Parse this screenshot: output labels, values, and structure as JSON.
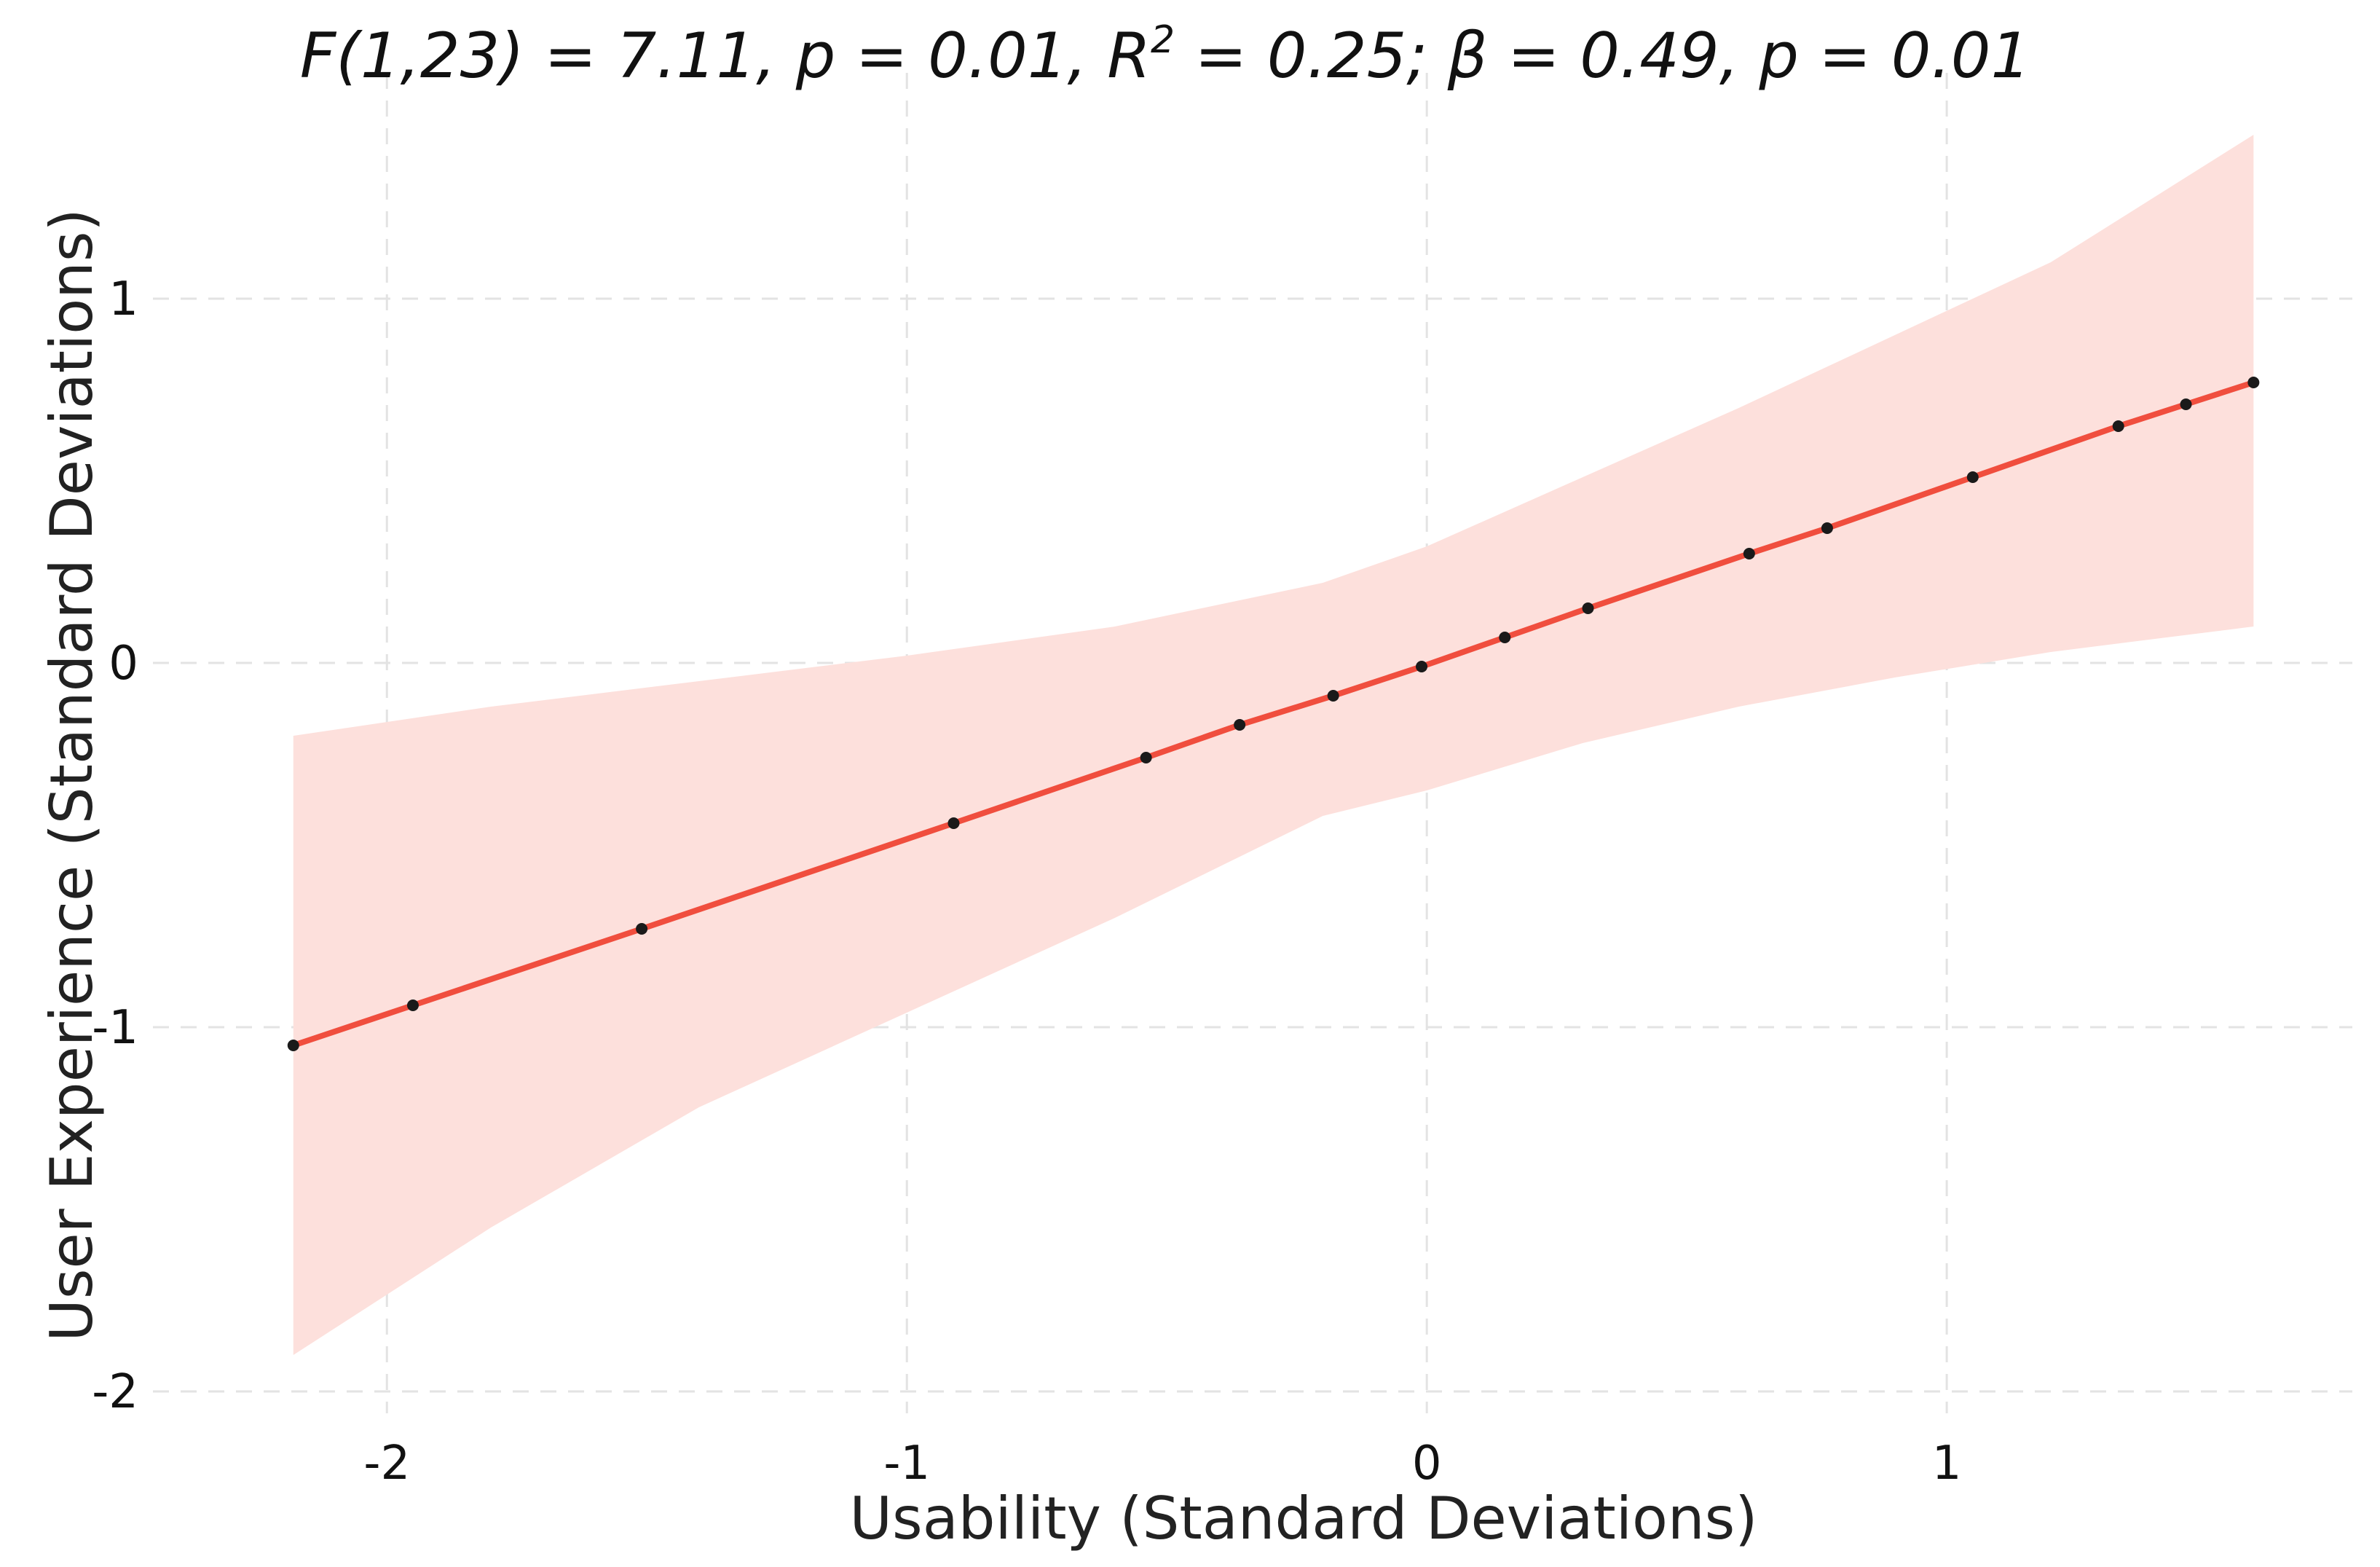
{
  "chart_data": {
    "type": "line",
    "title": {
      "part1": "F(1,23) = 7.11, p = 0.01, R",
      "sup": "2",
      "part2": " = 0.25; β = 0.49, p = 0.01"
    },
    "xlabel": "Usability (Standard Deviations)",
    "ylabel": "User Experience (Standard Deviations)",
    "xlim": [
      -2.45,
      1.78
    ],
    "ylim": [
      -2.1,
      1.5
    ],
    "x_ticks": [
      -2,
      -1,
      0,
      1
    ],
    "x_tick_labels": [
      "-2",
      "-1",
      "0",
      "1"
    ],
    "y_ticks": [
      -2,
      -1,
      0,
      1
    ],
    "y_tick_labels": [
      "-2",
      "-1",
      "0",
      "1"
    ],
    "grid": true,
    "series": [
      {
        "name": "fit",
        "x": [
          -2.18,
          -1.95,
          -1.51,
          -0.91,
          -0.54,
          -0.36,
          -0.18,
          -0.01,
          0.15,
          0.31,
          0.62,
          0.77,
          1.05,
          1.33,
          1.46,
          1.59
        ],
        "y": [
          -1.05,
          -0.94,
          -0.73,
          -0.44,
          -0.26,
          -0.17,
          -0.09,
          -0.01,
          0.07,
          0.15,
          0.3,
          0.37,
          0.51,
          0.65,
          0.71,
          0.77
        ]
      }
    ],
    "ci_band": {
      "x": [
        -2.18,
        -1.8,
        -1.4,
        -1.0,
        -0.6,
        -0.2,
        0.0,
        0.3,
        0.6,
        0.9,
        1.2,
        1.59
      ],
      "upper": [
        -0.2,
        -0.12,
        -0.05,
        0.02,
        0.1,
        0.22,
        0.32,
        0.51,
        0.7,
        0.9,
        1.1,
        1.45
      ],
      "lower": [
        -1.9,
        -1.55,
        -1.22,
        -0.96,
        -0.7,
        -0.42,
        -0.35,
        -0.22,
        -0.12,
        -0.04,
        0.03,
        0.1
      ]
    },
    "colors": {
      "line": "#f04e3e",
      "band": "#fde0dc",
      "point": "#1a1a1a",
      "grid": "#e3e3e3"
    }
  }
}
